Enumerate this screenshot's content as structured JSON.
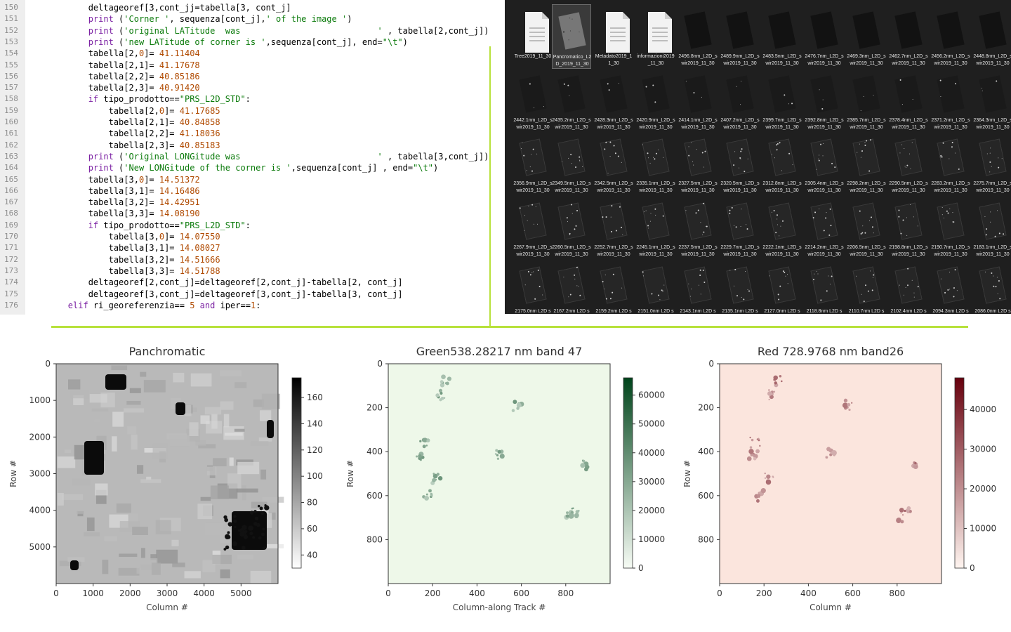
{
  "code_editor": {
    "lines": [
      {
        "n": "150",
        "indent": 12,
        "tokens": [
          [
            "t",
            "deltageoref[3,cont_jj=tabella[3, cont_j]"
          ]
        ]
      },
      {
        "n": "151",
        "indent": 12,
        "tokens": [
          [
            "k",
            "print"
          ],
          [
            "t",
            " ("
          ],
          [
            "s",
            "'Corner '"
          ],
          [
            "t",
            ", sequenza[cont_j],"
          ],
          [
            "s",
            "' of the image '"
          ],
          [
            "t",
            ")"
          ]
        ]
      },
      {
        "n": "152",
        "indent": 12,
        "tokens": [
          [
            "k",
            "print"
          ],
          [
            "t",
            " ("
          ],
          [
            "s",
            "'original LATitude  was                           '"
          ],
          [
            "t",
            " , tabella[2,cont_j])"
          ]
        ]
      },
      {
        "n": "153",
        "indent": 12,
        "tokens": [
          [
            "k",
            "print"
          ],
          [
            "t",
            " ("
          ],
          [
            "s",
            "'new LATitude of corner is '"
          ],
          [
            "t",
            ",sequenza[cont_j], end="
          ],
          [
            "s",
            "\"\\t\""
          ],
          [
            "t",
            ")"
          ]
        ]
      },
      {
        "n": "154",
        "indent": 12,
        "tokens": [
          [
            "t",
            "tabella[2,"
          ],
          [
            "n",
            "0"
          ],
          [
            "t",
            "]= "
          ],
          [
            "n",
            "41.11404"
          ]
        ]
      },
      {
        "n": "155",
        "indent": 12,
        "tokens": [
          [
            "t",
            "tabella[2,1]= "
          ],
          [
            "n",
            "41.17678"
          ]
        ]
      },
      {
        "n": "156",
        "indent": 12,
        "tokens": [
          [
            "t",
            "tabella[2,2]= "
          ],
          [
            "n",
            "40.85186"
          ]
        ]
      },
      {
        "n": "157",
        "indent": 12,
        "tokens": [
          [
            "t",
            "tabella[2,3]= "
          ],
          [
            "n",
            "40.91420"
          ]
        ]
      },
      {
        "n": "158",
        "indent": 12,
        "tokens": [
          [
            "k",
            "if"
          ],
          [
            "t",
            " tipo_prodotto=="
          ],
          [
            "s",
            "\"PRS_L2D_STD\""
          ],
          [
            "t",
            ":"
          ]
        ]
      },
      {
        "n": "159",
        "indent": 16,
        "tokens": [
          [
            "t",
            "tabella[2,"
          ],
          [
            "n",
            "0"
          ],
          [
            "t",
            "]= "
          ],
          [
            "n",
            "41.17685"
          ]
        ]
      },
      {
        "n": "160",
        "indent": 16,
        "tokens": [
          [
            "t",
            "tabella[2,1]= "
          ],
          [
            "n",
            "40.84858"
          ]
        ]
      },
      {
        "n": "161",
        "indent": 16,
        "tokens": [
          [
            "t",
            "tabella[2,2]= "
          ],
          [
            "n",
            "41.18036"
          ]
        ]
      },
      {
        "n": "162",
        "indent": 16,
        "tokens": [
          [
            "t",
            "tabella[2,3]= "
          ],
          [
            "n",
            "40.85183"
          ]
        ]
      },
      {
        "n": "163",
        "indent": 12,
        "tokens": [
          [
            "k",
            "print"
          ],
          [
            "t",
            " ("
          ],
          [
            "s",
            "'Original LONGitude was                           '"
          ],
          [
            "t",
            " , tabella[3,cont_j])"
          ]
        ]
      },
      {
        "n": "164",
        "indent": 12,
        "tokens": [
          [
            "k",
            "print"
          ],
          [
            "t",
            " ("
          ],
          [
            "s",
            "'New LONGitude of the corner is '"
          ],
          [
            "t",
            ",sequenza[cont_j] , end="
          ],
          [
            "s",
            "\"\\t\""
          ],
          [
            "t",
            ")"
          ]
        ]
      },
      {
        "n": "165",
        "indent": 12,
        "tokens": [
          [
            "t",
            "tabella[3,"
          ],
          [
            "n",
            "0"
          ],
          [
            "t",
            "]= "
          ],
          [
            "n",
            "14.51372"
          ]
        ]
      },
      {
        "n": "166",
        "indent": 12,
        "tokens": [
          [
            "t",
            "tabella[3,1]= "
          ],
          [
            "n",
            "14.16486"
          ]
        ]
      },
      {
        "n": "167",
        "indent": 12,
        "tokens": [
          [
            "t",
            "tabella[3,2]= "
          ],
          [
            "n",
            "14.42951"
          ]
        ]
      },
      {
        "n": "168",
        "indent": 12,
        "tokens": [
          [
            "t",
            "tabella[3,3]= "
          ],
          [
            "n",
            "14.08190"
          ]
        ]
      },
      {
        "n": "169",
        "indent": 12,
        "tokens": [
          [
            "k",
            "if"
          ],
          [
            "t",
            " tipo_prodotto=="
          ],
          [
            "s",
            "\"PRS_L2D_STD\""
          ],
          [
            "t",
            ":"
          ]
        ]
      },
      {
        "n": "170",
        "indent": 16,
        "tokens": [
          [
            "t",
            "tabella[3,"
          ],
          [
            "n",
            "0"
          ],
          [
            "t",
            "]= "
          ],
          [
            "n",
            "14.07550"
          ]
        ]
      },
      {
        "n": "171",
        "indent": 16,
        "tokens": [
          [
            "t",
            "tabella[3,1]= "
          ],
          [
            "n",
            "14.08027"
          ]
        ]
      },
      {
        "n": "172",
        "indent": 16,
        "tokens": [
          [
            "t",
            "tabella[3,2]= "
          ],
          [
            "n",
            "14.51666"
          ]
        ]
      },
      {
        "n": "173",
        "indent": 16,
        "tokens": [
          [
            "t",
            "tabella[3,3]= "
          ],
          [
            "n",
            "14.51788"
          ]
        ]
      },
      {
        "n": "174",
        "indent": 12,
        "tokens": [
          [
            "t",
            "deltageoref[2,cont_j]=deltageoref[2,cont_j]-tabella[2, cont_j]"
          ]
        ]
      },
      {
        "n": "175",
        "indent": 12,
        "tokens": [
          [
            "t",
            "deltageoref[3,cont_j]=deltageoref[3,cont_j]-tabella[3, cont_j]"
          ]
        ]
      },
      {
        "n": "176",
        "indent": 8,
        "tokens": [
          [
            "k",
            "elif"
          ],
          [
            "t",
            " ri_georeferenzia== "
          ],
          [
            "n",
            "5"
          ],
          [
            "t",
            " "
          ],
          [
            "k",
            "and"
          ],
          [
            "t",
            " iper=="
          ],
          [
            "n",
            "1"
          ],
          [
            "t",
            ":"
          ]
        ]
      }
    ]
  },
  "explorer": {
    "files": [
      {
        "label": "Tree2019_11_30",
        "kind": "doc"
      },
      {
        "label": "Pancromatico_L2\nD_2019_11_30",
        "kind": "bright",
        "selected": true
      },
      {
        "label": "Metadato2019_1\n1_30",
        "kind": "doc"
      },
      {
        "label": "informazioni2019\n_11_30",
        "kind": "doc"
      },
      {
        "label": "2496.8nm_L2D_s\nwir2019_11_30",
        "kind": "dim"
      },
      {
        "label": "2489.9nm_L2D_s\nwir2019_11_30",
        "kind": "dim"
      },
      {
        "label": "2483.5nm_L2D_s\nwir2019_11_30",
        "kind": "dim"
      },
      {
        "label": "2476.7nm_L2D_s\nwir2019_11_30",
        "kind": "dim"
      },
      {
        "label": "2469.3nm_L2D_s\nwir2019_11_30",
        "kind": "dim"
      },
      {
        "label": "2462.7nm_L2D_s\nwir2019_11_30",
        "kind": "dim"
      },
      {
        "label": "2456.2nm_L2D_s\nwir2019_11_30",
        "kind": "dim"
      },
      {
        "label": "2448.8nm_L2D_s\nwir2019_11_30",
        "kind": "dim"
      },
      {
        "label": "2442.1nm_L2D_s\nwir2019_11_30",
        "kind": "dim2"
      },
      {
        "label": "2435.2nm_L2D_s\nwir2019_11_30",
        "kind": "dim2"
      },
      {
        "label": "2428.3nm_L2D_s\nwir2019_11_30",
        "kind": "dim2"
      },
      {
        "label": "2420.9nm_L2D_s\nwir2019_11_30",
        "kind": "dim2"
      },
      {
        "label": "2414.1nm_L2D_s\nwir2019_11_30",
        "kind": "dim2"
      },
      {
        "label": "2407.2nm_L2D_s\nwir2019_11_30",
        "kind": "dim2"
      },
      {
        "label": "2399.7nm_L2D_s\nwir2019_11_30",
        "kind": "dim2"
      },
      {
        "label": "2392.8nm_L2D_s\nwir2019_11_30",
        "kind": "dim2"
      },
      {
        "label": "2385.7nm_L2D_s\nwir2019_11_30",
        "kind": "dim2"
      },
      {
        "label": "2378.4nm_L2D_s\nwir2019_11_30",
        "kind": "dim2"
      },
      {
        "label": "2371.2nm_L2D_s\nwir2019_11_30",
        "kind": "dim2"
      },
      {
        "label": "2364.3nm_L2D_s\nwir2019_11_30",
        "kind": "dim2"
      },
      {
        "label": "2356.9nm_L2D_s\nwir2019_11_30",
        "kind": "dim3"
      },
      {
        "label": "2349.5nm_L2D_s\nwir2019_11_30",
        "kind": "dim3"
      },
      {
        "label": "2342.5nm_L2D_s\nwir2019_11_30",
        "kind": "dim3"
      },
      {
        "label": "2335.1nm_L2D_s\nwir2019_11_30",
        "kind": "dim3"
      },
      {
        "label": "2327.5nm_L2D_s\nwir2019_11_30",
        "kind": "dim3"
      },
      {
        "label": "2320.5nm_L2D_s\nwir2019_11_30",
        "kind": "dim3"
      },
      {
        "label": "2312.8nm_L2D_s\nwir2019_11_30",
        "kind": "dim3"
      },
      {
        "label": "2305.4nm_L2D_s\nwir2019_11_30",
        "kind": "dim3"
      },
      {
        "label": "2298.2nm_L2D_s\nwir2019_11_30",
        "kind": "dim3"
      },
      {
        "label": "2290.5nm_L2D_s\nwir2019_11_30",
        "kind": "dim3"
      },
      {
        "label": "2283.2nm_L2D_s\nwir2019_11_30",
        "kind": "dim3"
      },
      {
        "label": "2275.7nm_L2D_s\nwir2019_11_30",
        "kind": "dim3"
      },
      {
        "label": "2267.9nm_L2D_s\nwir2019_11_30",
        "kind": "dim3"
      },
      {
        "label": "2260.5nm_L2D_s\nwir2019_11_30",
        "kind": "dim3"
      },
      {
        "label": "2252.7nm_L2D_s\nwir2019_11_30",
        "kind": "dim3"
      },
      {
        "label": "2245.1nm_L2D_s\nwir2019_11_30",
        "kind": "dim3"
      },
      {
        "label": "2237.5nm_L2D_s\nwir2019_11_30",
        "kind": "dim3"
      },
      {
        "label": "2229.7nm_L2D_s\nwir2019_11_30",
        "kind": "dim3"
      },
      {
        "label": "2222.1nm_L2D_s\nwir2019_11_30",
        "kind": "dim3"
      },
      {
        "label": "2214.2nm_L2D_s\nwir2019_11_30",
        "kind": "dim3"
      },
      {
        "label": "2206.5nm_L2D_s\nwir2019_11_30",
        "kind": "dim3"
      },
      {
        "label": "2198.8nm_L2D_s\nwir2019_11_30",
        "kind": "dim3"
      },
      {
        "label": "2190.7nm_L2D_s\nwir2019_11_30",
        "kind": "dim3"
      },
      {
        "label": "2183.1nm_L2D_s\nwir2019_11_30",
        "kind": "dim3"
      },
      {
        "label": "2175.0nm L2D s",
        "kind": "dim3"
      },
      {
        "label": "2167.2nm L2D s",
        "kind": "dim3"
      },
      {
        "label": "2159.2nm L2D s",
        "kind": "dim3"
      },
      {
        "label": "2151.0nm L2D s",
        "kind": "dim3"
      },
      {
        "label": "2143.1nm L2D s",
        "kind": "dim3"
      },
      {
        "label": "2135.1nm L2D s",
        "kind": "dim3"
      },
      {
        "label": "2127.0nm L2D s",
        "kind": "dim3"
      },
      {
        "label": "2118.8nm L2D s",
        "kind": "dim3"
      },
      {
        "label": "2110.7nm L2D s",
        "kind": "dim3"
      },
      {
        "label": "2102.4nm L2D s",
        "kind": "dim3"
      },
      {
        "label": "2094.3nm L2D s",
        "kind": "dim3"
      },
      {
        "label": "2086.0nm L2D s",
        "kind": "dim3"
      }
    ]
  },
  "chart_data": [
    {
      "type": "heatmap",
      "title": "Panchromatic",
      "xlabel": "Column #",
      "ylabel": "Row #",
      "xlim": [
        0,
        6000
      ],
      "ylim": [
        6000,
        0
      ],
      "xticks": [
        0,
        1000,
        2000,
        3000,
        4000,
        5000
      ],
      "xtick_labels": [
        "0",
        "1000",
        "2000",
        "3000",
        "4000",
        "5000"
      ],
      "yticks": [
        0,
        1000,
        2000,
        3000,
        4000,
        5000
      ],
      "ytick_labels": [
        "0",
        "1000",
        "2000",
        "3000",
        "4000",
        "5000"
      ],
      "colormap": "gray_r",
      "colorbar": {
        "min": 30,
        "max": 175,
        "ticks": [
          40,
          60,
          80,
          100,
          120,
          140,
          160
        ],
        "labels": [
          "40",
          "60",
          "80",
          "100",
          "120",
          "140",
          "160"
        ],
        "low_color": "#ffffff",
        "high_color": "#000000"
      },
      "background_color": "#b9b9b9"
    },
    {
      "type": "heatmap",
      "title": "Green538.28217 nm band 47",
      "xlabel": "Column-along Track #",
      "ylabel": "Row #",
      "xlim": [
        0,
        1000
      ],
      "ylim": [
        1000,
        0
      ],
      "xticks": [
        0,
        200,
        400,
        600,
        800
      ],
      "xtick_labels": [
        "0",
        "200",
        "400",
        "600",
        "800"
      ],
      "yticks": [
        0,
        200,
        400,
        600,
        800
      ],
      "ytick_labels": [
        "0",
        "200",
        "400",
        "600",
        "800"
      ],
      "colormap": "Greens",
      "colorbar": {
        "min": 0,
        "max": 66000,
        "ticks": [
          0,
          10000,
          20000,
          30000,
          40000,
          50000,
          60000
        ],
        "labels": [
          "0",
          "10000",
          "20000",
          "30000",
          "40000",
          "50000",
          "60000"
        ],
        "low_color": "#f7fcf5",
        "high_color": "#00441b"
      },
      "background_color": "#eef8e9"
    },
    {
      "type": "heatmap",
      "title": "Red 728.9768 nm band26",
      "xlabel": "Column #",
      "ylabel": "Row #",
      "xlim": [
        0,
        1000
      ],
      "ylim": [
        1000,
        0
      ],
      "xticks": [
        0,
        200,
        400,
        600,
        800
      ],
      "xtick_labels": [
        "0",
        "200",
        "400",
        "600",
        "800"
      ],
      "yticks": [
        0,
        200,
        400,
        600,
        800
      ],
      "ytick_labels": [
        "0",
        "200",
        "400",
        "600",
        "800"
      ],
      "colormap": "Reds",
      "colorbar": {
        "min": 0,
        "max": 48000,
        "ticks": [
          0,
          10000,
          20000,
          30000,
          40000
        ],
        "labels": [
          "0",
          "10000",
          "20000",
          "30000",
          "40000"
        ],
        "low_color": "#fff5f0",
        "high_color": "#67000d"
      },
      "background_color": "#fbe5dd"
    }
  ],
  "colors": {
    "divider": "#b7e13b",
    "keyword": "#7a1fa2",
    "string": "#0a7a0a",
    "number": "#b04a00",
    "explorer_bg": "#1f1f1f"
  }
}
